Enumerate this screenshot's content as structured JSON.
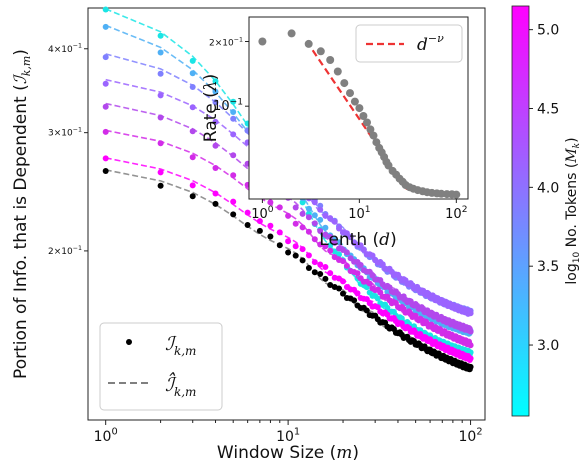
{
  "chart_data": [
    {
      "id": "main",
      "type": "scatter",
      "x_scale": "log",
      "y_scale": "log",
      "xlim": [
        0.8,
        120
      ],
      "ylim": [
        0.112,
        0.46
      ],
      "xlabel": "Window Size ($m$)",
      "ylabel": "Portion of Info. that is Dependent ($\\mathcal{I}_{k,m}$)",
      "x_ticks": [
        1,
        10,
        100
      ],
      "x_tick_labels": [
        "10^0",
        "10^1",
        "10^2"
      ],
      "y_ticks": [
        0.2,
        0.3,
        0.4
      ],
      "y_tick_labels": [
        "2×10^-1",
        "3×10^-1",
        "4×10^-1"
      ],
      "legend": {
        "placement": "lower-left",
        "entries": [
          {
            "label": "I_{k,m}",
            "marker": "dot",
            "color": "#000000"
          },
          {
            "label": "Î_{k,m}",
            "marker": "dashed-line",
            "color": "#808080"
          }
        ]
      },
      "series": [
        {
          "log10_tokens": 2.6,
          "color": "#1ae5e5",
          "start": 0.455,
          "end": 0.132,
          "m0": 10,
          "width": 0.34
        },
        {
          "log10_tokens": 3.1,
          "color": "#4fb0f5",
          "start": 0.43,
          "end": 0.141,
          "m0": 10,
          "width": 0.36
        },
        {
          "log10_tokens": 3.6,
          "color": "#7f80ff",
          "start": 0.39,
          "end": 0.151,
          "m0": 12,
          "width": 0.36
        },
        {
          "log10_tokens": 3.8,
          "color": "#9b64ff",
          "start": 0.357,
          "end": 0.148,
          "m0": 14,
          "width": 0.38
        },
        {
          "log10_tokens": 4.3,
          "color": "#b248ec",
          "start": 0.329,
          "end": 0.14,
          "m0": 14,
          "width": 0.38
        },
        {
          "log10_tokens": 4.7,
          "color": "#d22ce8",
          "start": 0.3,
          "end": 0.131,
          "m0": 16,
          "width": 0.4
        },
        {
          "log10_tokens": 5.1,
          "color": "#ff00ff",
          "start": 0.273,
          "end": 0.124,
          "m0": 16,
          "width": 0.42
        },
        {
          "log10_tokens": null,
          "color": "#000000",
          "start": 0.262,
          "end": 0.12,
          "m0": 16,
          "width": 0.42
        }
      ]
    },
    {
      "id": "inset",
      "type": "scatter",
      "x_scale": "log",
      "y_scale": "log",
      "xlim": [
        0.8,
        120
      ],
      "ylim": [
        0.037,
        0.26
      ],
      "xlabel": "Lenth ($d$)",
      "ylabel": "Rate ($\\lambda$)",
      "x_ticks": [
        1,
        10,
        100
      ],
      "x_tick_labels": [
        "10^0",
        "10^1",
        "10^2"
      ],
      "y_ticks": [
        0.1,
        0.2
      ],
      "y_tick_labels": [
        "10^-1",
        "2×10^-1"
      ],
      "legend": {
        "placement": "top-right",
        "entries": [
          {
            "label": "d^{-ν}",
            "marker": "dashed-line",
            "color": "#ee3333"
          }
        ]
      },
      "points_color": "#808080",
      "points_x": [
        1,
        2,
        3,
        4,
        5,
        6,
        7,
        8,
        9,
        10,
        11,
        12,
        13,
        14,
        15,
        16,
        17,
        18,
        19,
        20,
        22,
        24,
        26,
        28,
        30,
        33,
        36,
        40,
        45,
        50,
        56,
        63,
        70,
        80,
        90,
        100
      ],
      "points_y": [
        0.2,
        0.218,
        0.195,
        0.18,
        0.164,
        0.145,
        0.128,
        0.115,
        0.105,
        0.098,
        0.09,
        0.084,
        0.078,
        0.073,
        0.068,
        0.064,
        0.061,
        0.058,
        0.055,
        0.053,
        0.05,
        0.048,
        0.046,
        0.0445,
        0.043,
        0.042,
        0.0413,
        0.0407,
        0.0402,
        0.0398,
        0.0395,
        0.0393,
        0.0391,
        0.039,
        0.0389,
        0.0388
      ],
      "fit_line": {
        "label": "d^{-ν}",
        "x_from": 3.3,
        "x_to": 31,
        "y_at_from": 0.182,
        "y_at_to": 0.041
      }
    }
  ],
  "colorbar": {
    "label": "log10 No. Tokens (M_k)",
    "range": [
      2.55,
      5.15
    ],
    "ticks": [
      3.0,
      3.5,
      4.0,
      4.5,
      5.0
    ],
    "tick_labels": [
      "3.0",
      "3.5",
      "4.0",
      "4.5",
      "5.0"
    ],
    "color_low": "#00ffff",
    "color_high": "#ff00ff"
  }
}
